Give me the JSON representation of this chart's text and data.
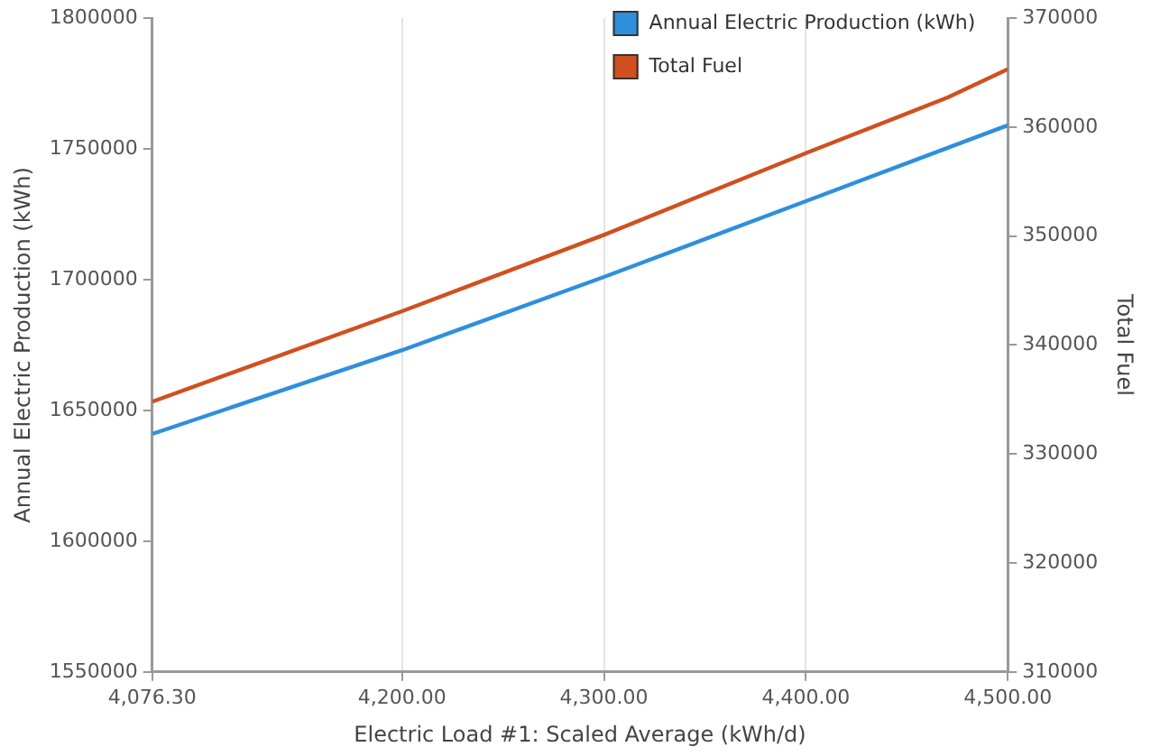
{
  "chart_data": {
    "type": "line",
    "xlabel": "Electric Load #1: Scaled Average (kWh/d)",
    "ylabel": "Annual Electric Production (kWh)",
    "y2label": "Total Fuel",
    "x": [
      4076.3,
      4200,
      4300,
      4400,
      4500
    ],
    "series": [
      {
        "name": "Annual Electric Production (kWh)",
        "color": "#2e8fdc",
        "values": [
          1641000,
          1673000,
          1701000,
          1730000,
          1759000
        ]
      },
      {
        "name": "Total Fuel",
        "color": "#d0501e",
        "axis": "y2",
        "x": [
          4076.3,
          4200,
          4300,
          4400,
          4470,
          4500
        ],
        "values": [
          334800,
          343100,
          350100,
          357600,
          362700,
          365300
        ]
      }
    ],
    "xlim": [
      4076.3,
      4500
    ],
    "xticks": [
      {
        "value": 4076.3,
        "label": "4,076.30"
      },
      {
        "value": 4200,
        "label": "4,200.00"
      },
      {
        "value": 4300,
        "label": "4,300.00"
      },
      {
        "value": 4400,
        "label": "4,400.00"
      },
      {
        "value": 4500,
        "label": "4,500.00"
      }
    ],
    "ylim": [
      1550000,
      1800000
    ],
    "yticks": [
      1550000,
      1600000,
      1650000,
      1700000,
      1750000,
      1800000
    ],
    "y2lim": [
      310000,
      370000
    ],
    "y2ticks": [
      310000,
      320000,
      330000,
      340000,
      350000,
      360000,
      370000
    ],
    "grid": "x",
    "legend": "top right",
    "marker": "none",
    "line_style": "solid"
  }
}
